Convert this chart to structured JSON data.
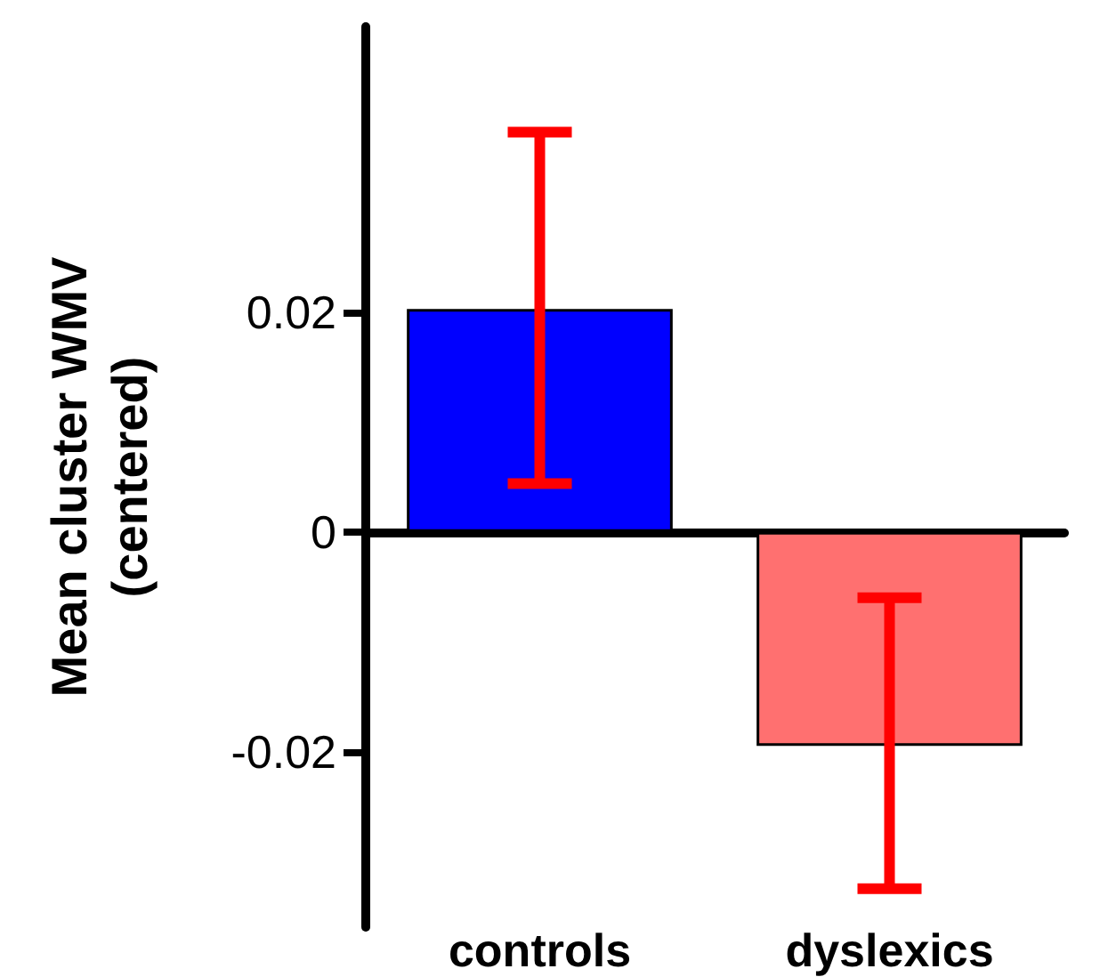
{
  "chart_data": {
    "type": "bar",
    "ylabel": "Mean cluster WMV\n(centered)",
    "categories": [
      "controls",
      "dyslexics"
    ],
    "values": [
      0.0203,
      -0.0195
    ],
    "colors": [
      "#0000ff",
      "#ff7070"
    ],
    "errors": [
      [
        0.0044,
        0.0364
      ],
      [
        -0.0325,
        -0.006
      ]
    ],
    "ylim": [
      -0.036,
      0.046
    ],
    "yticks": [
      -0.02,
      0,
      0.02
    ]
  }
}
